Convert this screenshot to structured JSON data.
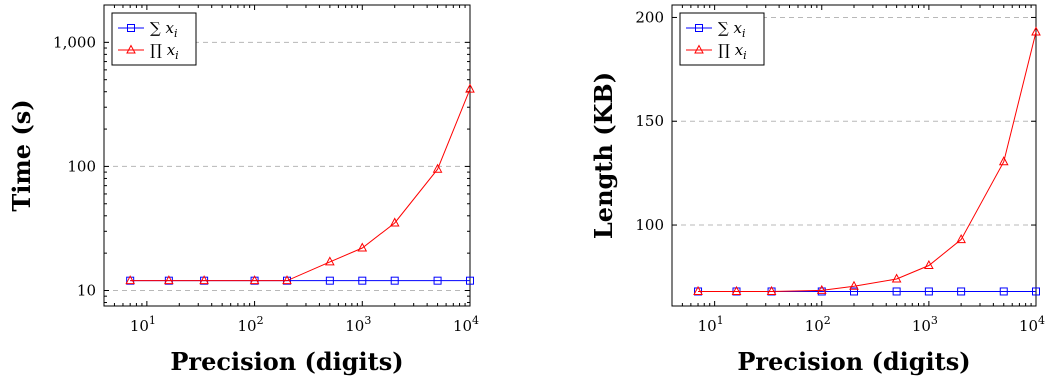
{
  "chart_data": [
    {
      "type": "line",
      "xscale": "log",
      "yscale": "log",
      "xlabel": "Precision (digits)",
      "ylabel": "Time (s)",
      "xlim": [
        4,
        10000
      ],
      "ylim": [
        7.5,
        2000
      ],
      "xticks": [
        10,
        100,
        1000,
        10000
      ],
      "xtick_labels": [
        {
          "base": "10",
          "exp": "1"
        },
        {
          "base": "10",
          "exp": "2"
        },
        {
          "base": "10",
          "exp": "3"
        },
        {
          "base": "10",
          "exp": "4"
        }
      ],
      "yticks": [
        10,
        100,
        1000
      ],
      "ytick_labels": [
        "10",
        "100",
        "1,000"
      ],
      "grid": "horizontal-dashed",
      "legend": "top-left",
      "x": [
        7,
        16,
        34,
        100,
        200,
        500,
        1000,
        2000,
        5000,
        10000
      ],
      "series": [
        {
          "name": "∑ x",
          "subscript": "i",
          "color": "#0000ff",
          "marker": "square",
          "values": [
            12,
            12,
            12,
            12,
            12,
            12,
            12,
            12,
            12,
            12
          ]
        },
        {
          "name": "∏ x",
          "subscript": "i",
          "color": "#ff0000",
          "marker": "triangle",
          "values": [
            12,
            12,
            12,
            12,
            12,
            17,
            22,
            35,
            95,
            420
          ]
        }
      ]
    },
    {
      "type": "line",
      "xscale": "log",
      "yscale": "linear",
      "xlabel": "Precision (digits)",
      "ylabel": "Length (KB)",
      "xlim": [
        4,
        10000
      ],
      "ylim": [
        61,
        206
      ],
      "xticks": [
        10,
        100,
        1000,
        10000
      ],
      "xtick_labels": [
        {
          "base": "10",
          "exp": "1"
        },
        {
          "base": "10",
          "exp": "2"
        },
        {
          "base": "10",
          "exp": "3"
        },
        {
          "base": "10",
          "exp": "4"
        }
      ],
      "yticks": [
        100,
        150,
        200
      ],
      "ytick_labels": [
        "100",
        "150",
        "200"
      ],
      "grid": "horizontal-dashed",
      "legend": "top-left",
      "x": [
        7,
        16,
        34,
        100,
        200,
        500,
        1000,
        2000,
        5000,
        10000
      ],
      "series": [
        {
          "name": "∑ x",
          "subscript": "i",
          "color": "#0000ff",
          "marker": "square",
          "values": [
            68,
            68,
            68,
            68,
            68,
            68,
            68,
            68,
            68,
            68
          ]
        },
        {
          "name": "∏ x",
          "subscript": "i",
          "color": "#ff0000",
          "marker": "triangle",
          "values": [
            68,
            68,
            68,
            68.5,
            70.5,
            74,
            80.5,
            93,
            130.5,
            193
          ]
        }
      ]
    }
  ]
}
